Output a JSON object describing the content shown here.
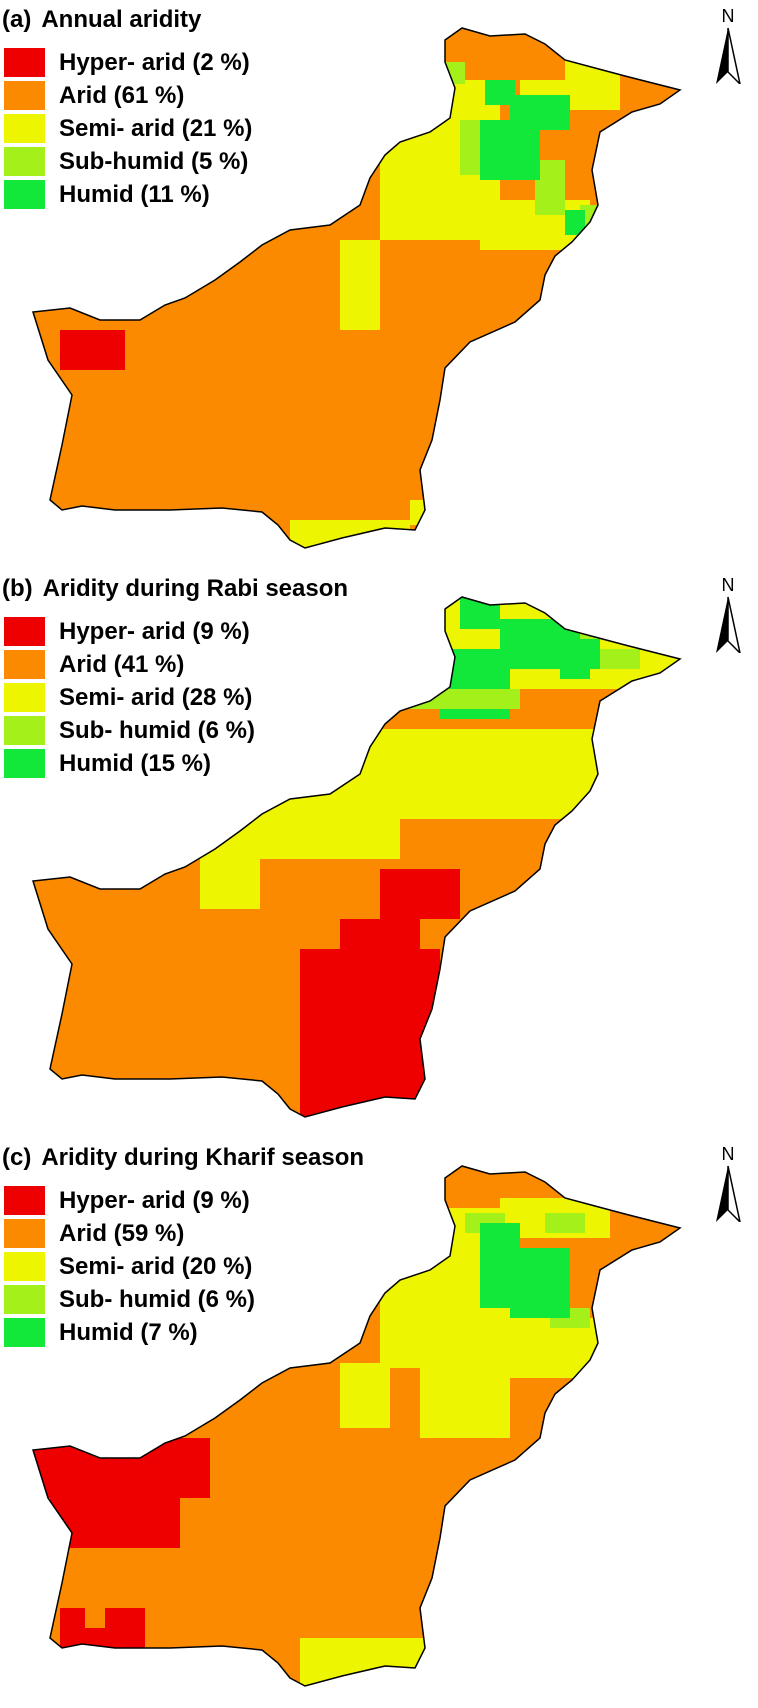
{
  "colors": {
    "hyper_arid": "#ee0000",
    "arid": "#fb8a00",
    "semi_arid": "#eef500",
    "sub_humid": "#a4f01a",
    "humid": "#12e83a"
  },
  "north_arrow_label": "N",
  "panels": [
    {
      "tag": "(a)",
      "title": "Annual aridity",
      "legend": [
        {
          "key": "hyper_arid",
          "label": "Hyper- arid (2 %)",
          "percent": 2
        },
        {
          "key": "arid",
          "label": "Arid (61 %)",
          "percent": 61
        },
        {
          "key": "semi_arid",
          "label": "Semi- arid (21 %)",
          "percent": 21
        },
        {
          "key": "sub_humid",
          "label": "Sub-humid  (5 %)",
          "percent": 5
        },
        {
          "key": "humid",
          "label": "Humid (11 %)",
          "percent": 11
        }
      ]
    },
    {
      "tag": "(b)",
      "title": "Aridity during Rabi season",
      "legend": [
        {
          "key": "hyper_arid",
          "label": "Hyper- arid (9 %)",
          "percent": 9
        },
        {
          "key": "arid",
          "label": "Arid (41 %)",
          "percent": 41
        },
        {
          "key": "semi_arid",
          "label": "Semi- arid (28 %)",
          "percent": 28
        },
        {
          "key": "sub_humid",
          "label": "Sub- humid  (6 %)",
          "percent": 6
        },
        {
          "key": "humid",
          "label": "Humid  (15 %)",
          "percent": 15
        }
      ]
    },
    {
      "tag": "(c)",
      "title": "Aridity during Kharif season",
      "legend": [
        {
          "key": "hyper_arid",
          "label": "Hyper- arid (9 %)",
          "percent": 9
        },
        {
          "key": "arid",
          "label": "Arid (59 %)",
          "percent": 59
        },
        {
          "key": "semi_arid",
          "label": "Semi- arid (20 %)",
          "percent": 20
        },
        {
          "key": "sub_humid",
          "label": "Sub- humid (6 %)",
          "percent": 6
        },
        {
          "key": "humid",
          "label": "Humid (7 %)",
          "percent": 7
        }
      ]
    }
  ]
}
